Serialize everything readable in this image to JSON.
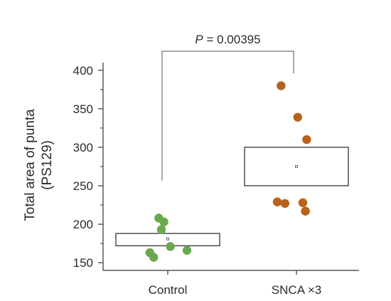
{
  "chart_data": {
    "type": "scatter",
    "ylabel_line1": "Total area of punta",
    "ylabel_line2": "(PS129)",
    "categories": [
      "Control",
      "SNCA ×3"
    ],
    "ylim": [
      140,
      410
    ],
    "yticks": [
      150,
      200,
      250,
      300,
      350,
      400
    ],
    "yticks_minor": [
      175,
      225,
      275,
      325,
      375
    ],
    "groups": [
      {
        "label": "Control",
        "color": "#6aa84f",
        "box": {
          "low": 172,
          "high": 188,
          "mean": 181
        },
        "points": [
          {
            "x_offset": -0.07,
            "y": 208
          },
          {
            "x_offset": -0.03,
            "y": 203
          },
          {
            "x_offset": -0.05,
            "y": 193
          },
          {
            "x_offset": 0.02,
            "y": 171
          },
          {
            "x_offset": 0.15,
            "y": 166
          },
          {
            "x_offset": -0.14,
            "y": 163
          },
          {
            "x_offset": -0.11,
            "y": 157
          }
        ]
      },
      {
        "label": "SNCA ×3",
        "color": "#b8621b",
        "box": {
          "low": 250,
          "high": 300,
          "mean": 275
        },
        "points": [
          {
            "x_offset": -0.12,
            "y": 380
          },
          {
            "x_offset": 0.01,
            "y": 339
          },
          {
            "x_offset": 0.08,
            "y": 310
          },
          {
            "x_offset": -0.15,
            "y": 229
          },
          {
            "x_offset": -0.09,
            "y": 227
          },
          {
            "x_offset": 0.05,
            "y": 228
          },
          {
            "x_offset": 0.07,
            "y": 217
          }
        ]
      }
    ],
    "significance": {
      "prefix": "P",
      "text": " = 0.00395",
      "left_y": 257,
      "right_y": 396
    }
  }
}
